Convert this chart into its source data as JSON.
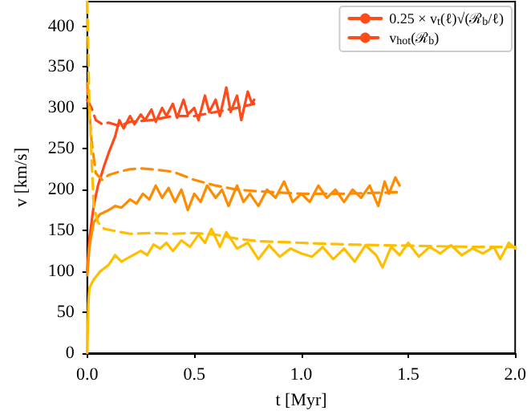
{
  "chart_data": {
    "type": "line",
    "xlabel": "t [Myr]",
    "ylabel": "v [km/s]",
    "xlim": [
      0,
      2
    ],
    "xticks": [
      {
        "value": 0,
        "label": "0.0"
      },
      {
        "value": 0.5,
        "label": "0.5"
      },
      {
        "value": 1,
        "label": "1.0"
      },
      {
        "value": 1.5,
        "label": "1.5"
      },
      {
        "value": 2,
        "label": "2.0"
      }
    ],
    "ylim": [
      0,
      430
    ],
    "yticks": [
      0,
      50,
      100,
      150,
      200,
      250,
      300,
      350,
      400
    ],
    "grid": false,
    "legend": "top right",
    "marker": "none",
    "series": [
      {
        "name": "0.25 × v$_{t}$(ℓ)√(ℛ$_{b}$/ℓ)",
        "color": "#ff4a1a",
        "line_style": "solid",
        "x": [
          0,
          0.01,
          0.03,
          0.05,
          0.08,
          0.1,
          0.13,
          0.15,
          0.17,
          0.2,
          0.22,
          0.25,
          0.27,
          0.3,
          0.32,
          0.35,
          0.37,
          0.4,
          0.42,
          0.45,
          0.47,
          0.5,
          0.52,
          0.55,
          0.57,
          0.6,
          0.62,
          0.65,
          0.67,
          0.7,
          0.72,
          0.75,
          0.77,
          0.78
        ],
        "values": [
          100,
          140,
          180,
          205,
          230,
          245,
          265,
          285,
          275,
          290,
          280,
          292,
          285,
          298,
          283,
          300,
          290,
          305,
          288,
          310,
          292,
          300,
          285,
          315,
          295,
          310,
          290,
          325,
          295,
          315,
          285,
          320,
          305,
          310
        ]
      },
      {
        "name": "v$_{hot}$(ℛ$_{b}$)",
        "color": "#ff4a1a",
        "line_style": "dashed",
        "x": [
          0,
          0.02,
          0.04,
          0.07,
          0.1,
          0.15,
          0.2,
          0.3,
          0.4,
          0.5,
          0.6,
          0.7,
          0.78
        ],
        "values": [
          310,
          300,
          285,
          280,
          282,
          278,
          283,
          285,
          290,
          290,
          295,
          300,
          305
        ]
      },
      {
        "color": "#ff8c00",
        "line_style": "solid",
        "x": [
          0,
          0.01,
          0.03,
          0.06,
          0.1,
          0.13,
          0.16,
          0.2,
          0.23,
          0.26,
          0.29,
          0.32,
          0.35,
          0.38,
          0.41,
          0.44,
          0.47,
          0.5,
          0.53,
          0.56,
          0.6,
          0.63,
          0.66,
          0.7,
          0.73,
          0.76,
          0.8,
          0.84,
          0.88,
          0.92,
          0.96,
          1.0,
          1.04,
          1.08,
          1.12,
          1.16,
          1.2,
          1.24,
          1.28,
          1.32,
          1.36,
          1.39,
          1.41,
          1.44,
          1.46
        ],
        "values": [
          95,
          130,
          160,
          170,
          175,
          180,
          178,
          188,
          183,
          195,
          188,
          205,
          190,
          202,
          185,
          200,
          175,
          195,
          185,
          205,
          190,
          200,
          180,
          205,
          185,
          195,
          180,
          200,
          190,
          210,
          185,
          195,
          185,
          205,
          190,
          200,
          185,
          200,
          190,
          205,
          180,
          210,
          195,
          215,
          205
        ]
      },
      {
        "color": "#ff8c00",
        "line_style": "dashed",
        "x": [
          0,
          0.02,
          0.04,
          0.07,
          0.1,
          0.15,
          0.2,
          0.25,
          0.3,
          0.4,
          0.5,
          0.6,
          0.7,
          0.8,
          1.0,
          1.2,
          1.46
        ],
        "values": [
          330,
          260,
          220,
          212,
          218,
          222,
          225,
          226,
          225,
          222,
          212,
          205,
          200,
          198,
          195,
          195,
          197
        ]
      },
      {
        "color": "#ffbf00",
        "line_style": "solid",
        "x": [
          0,
          0.005,
          0.01,
          0.03,
          0.06,
          0.1,
          0.13,
          0.16,
          0.2,
          0.25,
          0.28,
          0.31,
          0.34,
          0.37,
          0.4,
          0.44,
          0.48,
          0.52,
          0.55,
          0.58,
          0.62,
          0.65,
          0.7,
          0.75,
          0.8,
          0.85,
          0.9,
          0.95,
          1.0,
          1.05,
          1.1,
          1.15,
          1.2,
          1.25,
          1.3,
          1.35,
          1.38,
          1.42,
          1.46,
          1.5,
          1.55,
          1.6,
          1.65,
          1.7,
          1.75,
          1.8,
          1.85,
          1.9,
          1.93,
          1.97,
          2.0
        ],
        "values": [
          0,
          60,
          80,
          90,
          100,
          108,
          120,
          112,
          118,
          125,
          120,
          133,
          128,
          135,
          125,
          138,
          130,
          145,
          135,
          152,
          130,
          148,
          128,
          135,
          115,
          132,
          118,
          128,
          122,
          118,
          130,
          115,
          128,
          112,
          132,
          120,
          105,
          130,
          120,
          135,
          118,
          130,
          122,
          132,
          120,
          128,
          122,
          130,
          115,
          135,
          128
        ]
      },
      {
        "color": "#ffbf00",
        "line_style": "dashed",
        "x": [
          0,
          0.01,
          0.03,
          0.05,
          0.08,
          0.12,
          0.2,
          0.3,
          0.4,
          0.5,
          0.6,
          0.7,
          0.8,
          0.9,
          1.0,
          1.2,
          1.4,
          1.6,
          1.8,
          2.0
        ],
        "values": [
          430,
          300,
          180,
          160,
          152,
          150,
          146,
          147,
          146,
          147,
          145,
          140,
          137,
          136,
          135,
          133,
          132,
          131,
          130,
          130
        ]
      }
    ]
  }
}
